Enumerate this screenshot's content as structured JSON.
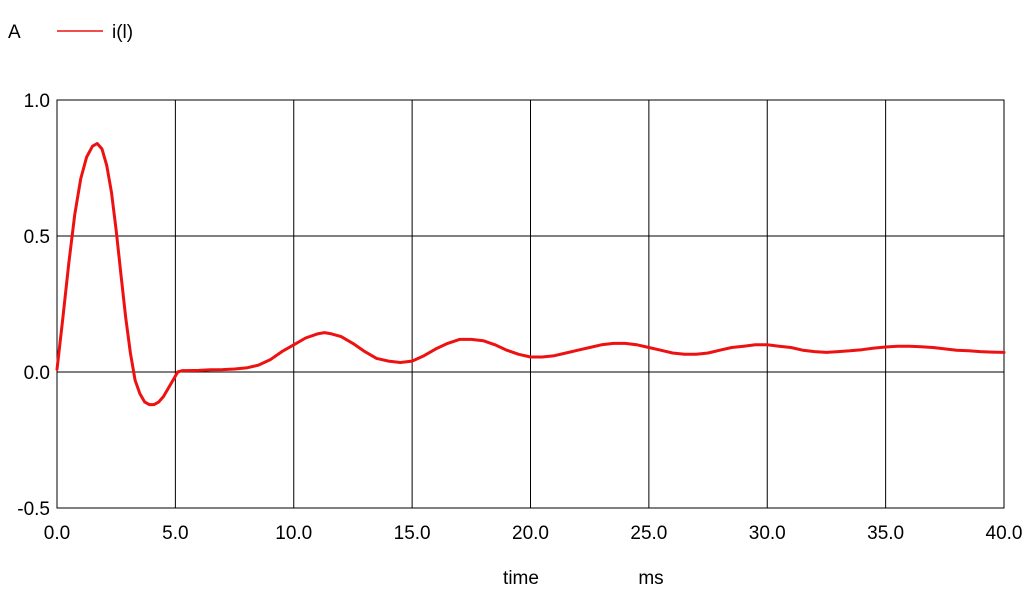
{
  "chart_data": {
    "type": "line",
    "unit_label": "A",
    "legend": {
      "placement": "top-left"
    },
    "xlabel": "time",
    "xunit": "ms",
    "xlim": [
      0,
      40
    ],
    "ylim": [
      -0.5,
      1.0
    ],
    "x_ticks": [
      "0.0",
      "5.0",
      "10.0",
      "15.0",
      "20.0",
      "25.0",
      "30.0",
      "35.0",
      "40.0"
    ],
    "y_ticks": [
      "-0.5",
      "0.0",
      "0.5",
      "1.0"
    ],
    "grid": true,
    "series": [
      {
        "name": "i(l)",
        "color": "#ee1111",
        "x": [
          0,
          0.25,
          0.5,
          0.75,
          1.0,
          1.25,
          1.5,
          1.7,
          1.9,
          2.1,
          2.3,
          2.5,
          2.7,
          2.9,
          3.1,
          3.3,
          3.5,
          3.7,
          3.9,
          4.1,
          4.3,
          4.5,
          4.7,
          4.9,
          5.1,
          5.3,
          5.5,
          6.0,
          6.5,
          7.0,
          7.5,
          8.0,
          8.5,
          9.0,
          9.5,
          10.0,
          10.5,
          11.0,
          11.3,
          11.6,
          12.0,
          12.5,
          13.0,
          13.5,
          14.0,
          14.5,
          15.0,
          15.5,
          16.0,
          16.5,
          17.0,
          17.5,
          18.0,
          18.5,
          19.0,
          19.5,
          20.0,
          20.5,
          21.0,
          21.5,
          22.0,
          22.5,
          23.0,
          23.5,
          24.0,
          24.5,
          25.0,
          25.5,
          26.0,
          26.5,
          27.0,
          27.5,
          28.0,
          28.5,
          29.0,
          29.5,
          30.0,
          30.5,
          31.0,
          31.5,
          32.0,
          32.5,
          33.0,
          33.5,
          34.0,
          34.5,
          35.0,
          35.5,
          36.0,
          36.5,
          37.0,
          37.5,
          38.0,
          38.5,
          39.0,
          39.5,
          40.0
        ],
        "values": [
          0.01,
          0.2,
          0.4,
          0.58,
          0.71,
          0.79,
          0.83,
          0.84,
          0.82,
          0.76,
          0.66,
          0.52,
          0.36,
          0.2,
          0.07,
          -0.03,
          -0.08,
          -0.11,
          -0.12,
          -0.12,
          -0.11,
          -0.09,
          -0.06,
          -0.03,
          0.0,
          0.005,
          0.005,
          0.006,
          0.008,
          0.009,
          0.011,
          0.015,
          0.025,
          0.045,
          0.075,
          0.1,
          0.125,
          0.14,
          0.145,
          0.14,
          0.13,
          0.105,
          0.075,
          0.05,
          0.04,
          0.035,
          0.04,
          0.06,
          0.085,
          0.105,
          0.12,
          0.12,
          0.115,
          0.1,
          0.08,
          0.065,
          0.055,
          0.055,
          0.06,
          0.07,
          0.08,
          0.09,
          0.1,
          0.105,
          0.105,
          0.1,
          0.09,
          0.08,
          0.07,
          0.065,
          0.065,
          0.07,
          0.08,
          0.09,
          0.095,
          0.1,
          0.1,
          0.095,
          0.09,
          0.08,
          0.075,
          0.072,
          0.075,
          0.078,
          0.082,
          0.088,
          0.092,
          0.095,
          0.095,
          0.093,
          0.09,
          0.085,
          0.08,
          0.078,
          0.075,
          0.073,
          0.072
        ]
      }
    ]
  }
}
